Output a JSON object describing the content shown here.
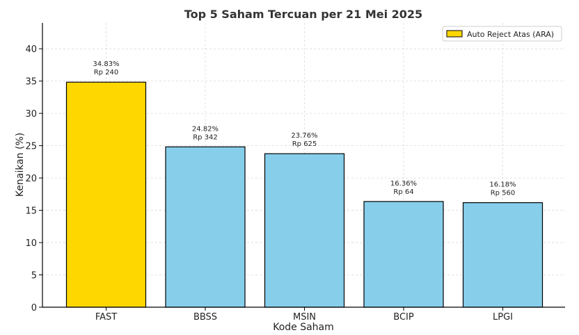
{
  "chart_data": {
    "type": "bar",
    "title": "Top 5 Saham Tercuan per 21 Mei 2025",
    "xlabel": "Kode Saham",
    "ylabel": "Kenaikan (%)",
    "categories": [
      "FAST",
      "BBSS",
      "MSIN",
      "BCIP",
      "LPGI"
    ],
    "values": [
      34.83,
      24.82,
      23.76,
      16.36,
      16.18
    ],
    "price_labels": [
      "Rp 240",
      "Rp 342",
      "Rp 625",
      "Rp 64",
      "Rp 560"
    ],
    "percent_labels": [
      "34.83%",
      "24.82%",
      "23.76%",
      "16.36%",
      "16.18%"
    ],
    "highlight": [
      true,
      false,
      false,
      false,
      false
    ],
    "ylim": [
      0,
      44
    ],
    "yticks": [
      0,
      5,
      10,
      15,
      20,
      25,
      30,
      35,
      40
    ],
    "grid": true,
    "legend": {
      "placement": "top-right",
      "entries": [
        {
          "label": "Auto Reject Atas (ARA)",
          "color": "#FFD700"
        }
      ]
    },
    "colors": {
      "highlight_bar": "#FFD700",
      "normal_bar": "#87CEEB",
      "bar_edge": "#000000",
      "grid": "#d9d9d9",
      "text": "#222222"
    }
  }
}
